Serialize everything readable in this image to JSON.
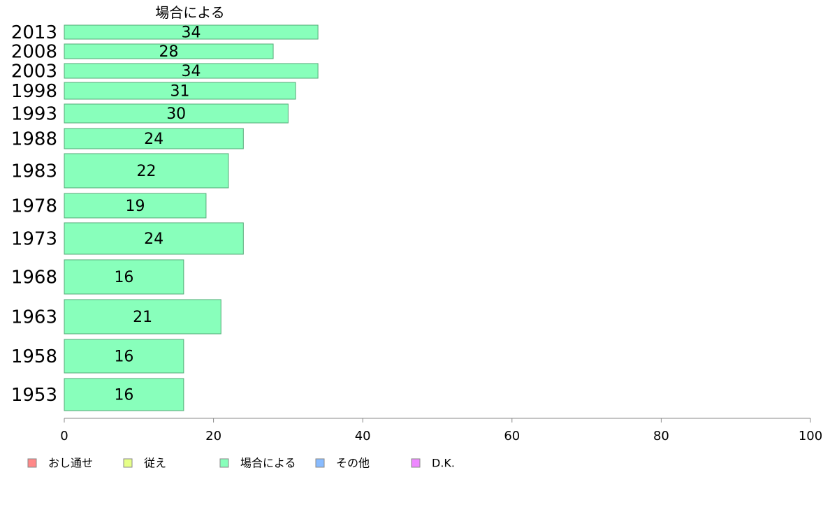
{
  "chart_data": {
    "type": "bar",
    "orientation": "horizontal",
    "title": "場合による",
    "categories": [
      "2013",
      "2008",
      "2003",
      "1998",
      "1993",
      "1988",
      "1983",
      "1978",
      "1973",
      "1968",
      "1963",
      "1958",
      "1953"
    ],
    "series": [
      {
        "name": "場合による",
        "color": "#88ffbb",
        "values": [
          34,
          28,
          34,
          31,
          30,
          24,
          22,
          19,
          24,
          16,
          21,
          16,
          16
        ]
      }
    ],
    "xlim": [
      0,
      100
    ],
    "xticks": [
      0,
      20,
      40,
      60,
      80,
      100
    ],
    "grid": false,
    "legend": {
      "placement": "bottom",
      "items": [
        {
          "label": "おし通せ",
          "color": "#ff8888"
        },
        {
          "label": "従え",
          "color": "#e6ff88"
        },
        {
          "label": "場合による",
          "color": "#88ffbb"
        },
        {
          "label": "その他",
          "color": "#88bbff"
        },
        {
          "label": "D.K.",
          "color": "#ee88ff"
        }
      ]
    }
  }
}
